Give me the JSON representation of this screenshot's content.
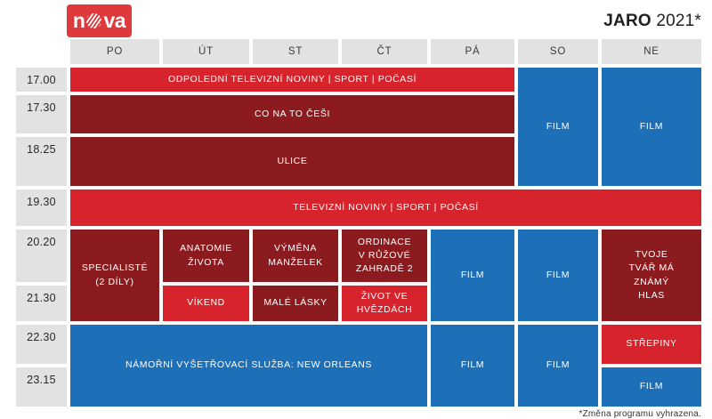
{
  "brand": {
    "name_left": "n",
    "name_right": "va"
  },
  "header": {
    "season_bold": "JARO",
    "season_rest": "2021*"
  },
  "days": [
    "PO",
    "ÚT",
    "ST",
    "ČT",
    "PÁ",
    "SO",
    "NE"
  ],
  "times": [
    "17.00",
    "17.30",
    "18.25",
    "19.30",
    "20.20",
    "21.30",
    "22.30",
    "23.15"
  ],
  "cells": [
    {
      "label": "ODPOLEDNÍ TELEVIZNÍ NOVINY | SPORT | POČASÍ",
      "color": "red"
    },
    {
      "label": "FILM",
      "color": "blue"
    },
    {
      "label": "FILM",
      "color": "blue"
    },
    {
      "label": "CO NA TO ČEŠI",
      "color": "maroon"
    },
    {
      "label": "ULICE",
      "color": "maroon"
    },
    {
      "label": "TELEVIZNÍ NOVINY | SPORT | POČASÍ",
      "color": "red"
    },
    {
      "label": "SPECIALISTÉ\n(2 DÍLY)",
      "color": "maroon"
    },
    {
      "label": "ANATOMIE\nŽIVOTA",
      "color": "maroon"
    },
    {
      "label": "VÝMĚNA\nMANŽELEK",
      "color": "maroon"
    },
    {
      "label": "ORDINACE\nV RŮŽOVÉ\nZAHRADĚ 2",
      "color": "maroon"
    },
    {
      "label": "FILM",
      "color": "blue"
    },
    {
      "label": "FILM",
      "color": "blue"
    },
    {
      "label": "TVOJE\nTVÁŘ MÁ\nZNÁMÝ\nHLAS",
      "color": "maroon"
    },
    {
      "label": "VÍKEND",
      "color": "red"
    },
    {
      "label": "MALÉ LÁSKY",
      "color": "maroon"
    },
    {
      "label": "ŽIVOT VE\nHVĚZDÁCH",
      "color": "red"
    },
    {
      "label": "NÁMOŘNÍ VYŠETŘOVACÍ SLUŽBA: NEW ORLEANS",
      "color": "blue"
    },
    {
      "label": "FILM",
      "color": "blue"
    },
    {
      "label": "FILM",
      "color": "blue"
    },
    {
      "label": "STŘEPINY",
      "color": "red"
    },
    {
      "label": "FILM",
      "color": "blue"
    }
  ],
  "footer": {
    "note": "*Změna programu vyhrazena."
  },
  "colors": {
    "red": "#d7232b",
    "maroon": "#8b1b1e",
    "blue": "#1d6fb8",
    "header_gray": "#e2e2e2",
    "logo_red": "#de3a3e"
  },
  "chart_data": {
    "type": "table",
    "title": "JARO 2021*",
    "columns": [
      "PO",
      "ÚT",
      "ST",
      "ČT",
      "PÁ",
      "SO",
      "NE"
    ],
    "rows": [
      "17.00",
      "17.30",
      "18.25",
      "19.30",
      "20.20",
      "21.30",
      "22.30",
      "23.15"
    ],
    "entries": [
      {
        "time": "17.00",
        "days": "PO–PÁ",
        "program": "ODPOLEDNÍ TELEVIZNÍ NOVINY | SPORT | POČASÍ",
        "color": "red"
      },
      {
        "time": "17.00–18.25",
        "days": "SO",
        "program": "FILM",
        "color": "blue"
      },
      {
        "time": "17.00–18.25",
        "days": "NE",
        "program": "FILM",
        "color": "blue"
      },
      {
        "time": "17.30",
        "days": "PO–PÁ",
        "program": "CO NA TO ČEŠI",
        "color": "maroon"
      },
      {
        "time": "18.25",
        "days": "PO–PÁ",
        "program": "ULICE",
        "color": "maroon"
      },
      {
        "time": "19.30",
        "days": "PO–NE",
        "program": "TELEVIZNÍ NOVINY | SPORT | POČASÍ",
        "color": "red"
      },
      {
        "time": "20.20–21.30",
        "days": "PO",
        "program": "SPECIALISTÉ (2 DÍLY)",
        "color": "maroon"
      },
      {
        "time": "20.20",
        "days": "ÚT",
        "program": "ANATOMIE ŽIVOTA",
        "color": "maroon"
      },
      {
        "time": "20.20",
        "days": "ST",
        "program": "VÝMĚNA MANŽELEK",
        "color": "maroon"
      },
      {
        "time": "20.20",
        "days": "ČT",
        "program": "ORDINACE V RŮŽOVÉ ZAHRADĚ 2",
        "color": "maroon"
      },
      {
        "time": "20.20–21.30",
        "days": "PÁ",
        "program": "FILM",
        "color": "blue"
      },
      {
        "time": "20.20–21.30",
        "days": "SO",
        "program": "FILM",
        "color": "blue"
      },
      {
        "time": "20.20–21.30",
        "days": "NE",
        "program": "TVOJE TVÁŘ MÁ ZNÁMÝ HLAS",
        "color": "maroon"
      },
      {
        "time": "21.30",
        "days": "ÚT",
        "program": "VÍKEND",
        "color": "red"
      },
      {
        "time": "21.30",
        "days": "ST",
        "program": "MALÉ LÁSKY",
        "color": "maroon"
      },
      {
        "time": "21.30",
        "days": "ČT",
        "program": "ŽIVOT VE HVĚZDÁCH",
        "color": "red"
      },
      {
        "time": "22.30–23.15",
        "days": "PO–ČT",
        "program": "NÁMOŘNÍ VYŠETŘOVACÍ SLUŽBA: NEW ORLEANS",
        "color": "blue"
      },
      {
        "time": "22.30–23.15",
        "days": "PÁ",
        "program": "FILM",
        "color": "blue"
      },
      {
        "time": "22.30–23.15",
        "days": "SO",
        "program": "FILM",
        "color": "blue"
      },
      {
        "time": "22.30",
        "days": "NE",
        "program": "STŘEPINY",
        "color": "red"
      },
      {
        "time": "23.15",
        "days": "NE",
        "program": "FILM",
        "color": "blue"
      }
    ]
  }
}
